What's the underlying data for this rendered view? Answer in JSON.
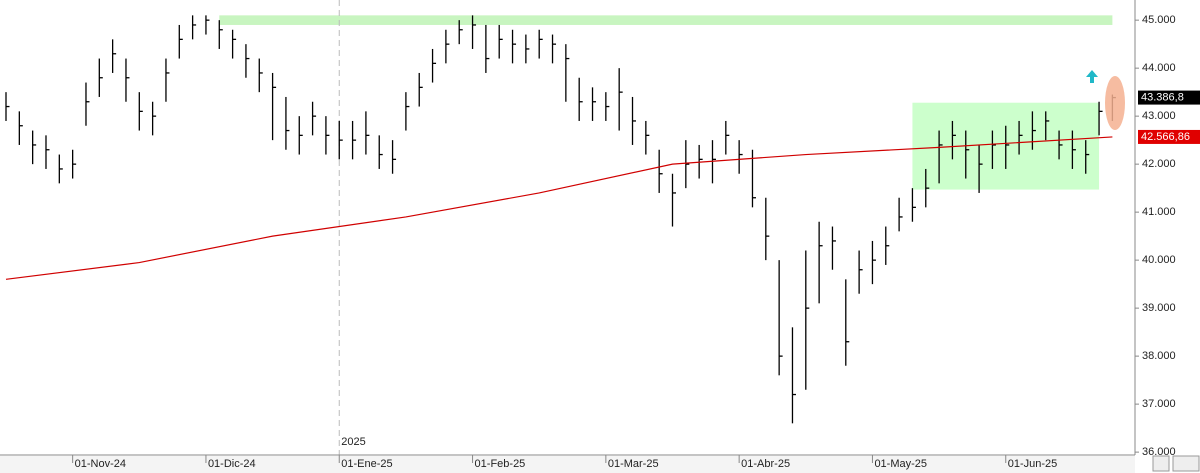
{
  "chart_data": {
    "type": "ohlc",
    "ylim": [
      35940,
      45420
    ],
    "yticks": [
      {
        "value": 36000,
        "label": "36.000"
      },
      {
        "value": 37000,
        "label": "37.000"
      },
      {
        "value": 38000,
        "label": "38.000"
      },
      {
        "value": 39000,
        "label": "39.000"
      },
      {
        "value": 40000,
        "label": "40.000"
      },
      {
        "value": 41000,
        "label": "41.000"
      },
      {
        "value": 42000,
        "label": "42.000"
      },
      {
        "value": 43000,
        "label": "43.000"
      },
      {
        "value": 44000,
        "label": "44.000"
      },
      {
        "value": 45000,
        "label": "45.000"
      }
    ],
    "xticks": [
      "01-Nov-24",
      "01-Dic-24",
      "01-Ene-25",
      "01-Feb-25",
      "01-Mar-25",
      "01-Abr-25",
      "01-May-25",
      "01-Jun-25"
    ],
    "year_marker": {
      "at": "01-Ene-25",
      "label": "2025"
    },
    "series": [
      {
        "type": "bars",
        "color": "#000000",
        "x": [
          "16-Oct-24",
          "19-Oct-24",
          "22-Oct-24",
          "25-Oct-24",
          "28-Oct-24",
          "01-Nov-24",
          "04-Nov-24",
          "07-Nov-24",
          "10-Nov-24",
          "13-Nov-24",
          "16-Nov-24",
          "19-Nov-24",
          "22-Nov-24",
          "25-Nov-24",
          "28-Nov-24",
          "01-Dic-24",
          "04-Dic-24",
          "07-Dic-24",
          "10-Dic-24",
          "13-Dic-24",
          "16-Dic-24",
          "19-Dic-24",
          "22-Dic-24",
          "25-Dic-24",
          "28-Dic-24",
          "01-Ene-25",
          "04-Ene-25",
          "07-Ene-25",
          "10-Ene-25",
          "13-Ene-25",
          "16-Ene-25",
          "19-Ene-25",
          "22-Ene-25",
          "25-Ene-25",
          "28-Ene-25",
          "01-Feb-25",
          "04-Feb-25",
          "07-Feb-25",
          "10-Feb-25",
          "13-Feb-25",
          "16-Feb-25",
          "19-Feb-25",
          "22-Feb-25",
          "25-Feb-25",
          "28-Feb-25",
          "01-Mar-25",
          "04-Mar-25",
          "07-Mar-25",
          "10-Mar-25",
          "13-Mar-25",
          "16-Mar-25",
          "19-Mar-25",
          "22-Mar-25",
          "25-Mar-25",
          "28-Mar-25",
          "01-Abr-25",
          "04-Abr-25",
          "07-Abr-25",
          "10-Abr-25",
          "13-Abr-25",
          "16-Abr-25",
          "19-Abr-25",
          "22-Abr-25",
          "25-Abr-25",
          "28-Abr-25",
          "01-May-25",
          "04-May-25",
          "07-May-25",
          "10-May-25",
          "13-May-25",
          "16-May-25",
          "19-May-25",
          "22-May-25",
          "25-May-25",
          "28-May-25",
          "01-Jun-25",
          "04-Jun-25",
          "07-Jun-25",
          "10-Jun-25",
          "13-Jun-25",
          "16-Jun-25",
          "19-Jun-25",
          "22-Jun-25",
          "25-Jun-25"
        ],
        "high": [
          43500,
          43100,
          42700,
          42600,
          42200,
          42300,
          43700,
          44200,
          44600,
          44200,
          43500,
          43300,
          44200,
          44900,
          45100,
          45100,
          45000,
          44800,
          44500,
          44200,
          43900,
          43400,
          43000,
          43300,
          43000,
          42900,
          42900,
          43100,
          42600,
          42500,
          43500,
          43900,
          44400,
          44800,
          45000,
          45100,
          44900,
          44900,
          44800,
          44700,
          44800,
          44700,
          44500,
          43800,
          43600,
          43500,
          44000,
          43400,
          42900,
          42300,
          41800,
          42500,
          42400,
          42500,
          42900,
          42500,
          42300,
          41300,
          40000,
          38600,
          40200,
          40800,
          40700,
          39600,
          40200,
          40400,
          40700,
          41300,
          41500,
          41900,
          42700,
          42900,
          42700,
          42400,
          42700,
          42800,
          42900,
          43100,
          43100,
          42700,
          42700,
          42500,
          43300,
          43450
        ],
        "low": [
          42900,
          42400,
          42000,
          41900,
          41600,
          41700,
          42800,
          43400,
          43900,
          43300,
          42700,
          42600,
          43300,
          44200,
          44600,
          44700,
          44400,
          44200,
          43800,
          43500,
          42500,
          42300,
          42200,
          42600,
          42200,
          42100,
          42100,
          42200,
          41900,
          41800,
          42700,
          43200,
          43700,
          44100,
          44500,
          44400,
          43900,
          44200,
          44100,
          44100,
          44200,
          44100,
          43300,
          42900,
          42900,
          42900,
          42700,
          42400,
          42200,
          41400,
          40700,
          41500,
          41700,
          41600,
          42200,
          41800,
          41100,
          40000,
          37600,
          36600,
          37300,
          39100,
          39800,
          37800,
          39300,
          39500,
          39900,
          40600,
          40800,
          41100,
          41600,
          42100,
          41700,
          41400,
          41900,
          41900,
          42200,
          42300,
          42500,
          42100,
          41900,
          41800,
          42600,
          42900
        ],
        "close": [
          43200,
          42800,
          42400,
          42300,
          41900,
          42000,
          43300,
          43800,
          44300,
          43800,
          43100,
          43000,
          43900,
          44600,
          44900,
          45000,
          44800,
          44600,
          44200,
          43900,
          43600,
          42700,
          42600,
          43000,
          42600,
          42500,
          42500,
          42600,
          42200,
          42100,
          43200,
          43600,
          44100,
          44500,
          44800,
          44900,
          44200,
          44600,
          44500,
          44400,
          44600,
          44500,
          44200,
          43300,
          43300,
          43200,
          43500,
          42900,
          42600,
          41800,
          41400,
          42000,
          42100,
          42100,
          42600,
          42200,
          41300,
          40500,
          38000,
          37200,
          39000,
          40300,
          40400,
          38300,
          39800,
          40000,
          40300,
          40900,
          41100,
          41500,
          42400,
          42600,
          42300,
          42000,
          42400,
          42400,
          42600,
          42700,
          42900,
          42400,
          42300,
          42200,
          43100,
          43387
        ]
      },
      {
        "type": "line",
        "color": "#d00000",
        "x": [
          "16-Oct-24",
          "16-Nov-24",
          "16-Dic-24",
          "16-Ene-25",
          "16-Feb-25",
          "16-Mar-25",
          "16-Abr-25",
          "16-May-25",
          "25-Jun-25"
        ],
        "values": [
          39600,
          39950,
          40500,
          40900,
          41400,
          42000,
          42200,
          42350,
          42567
        ]
      }
    ],
    "zones": [
      {
        "from": "04-Dic-24",
        "to": "25-Jun-25",
        "low": 44900,
        "high": 45100,
        "color": "#c8f5c0"
      },
      {
        "from": "10-May-25",
        "to": "22-Jun-25",
        "low": 41470,
        "high": 43280,
        "color": "#ccffcc"
      }
    ],
    "price_labels": [
      {
        "value": 43386.8,
        "label": "43.386,8",
        "color": "#000000"
      },
      {
        "value": 42566.86,
        "label": "42.566,86",
        "color": "#e00000"
      }
    ]
  }
}
